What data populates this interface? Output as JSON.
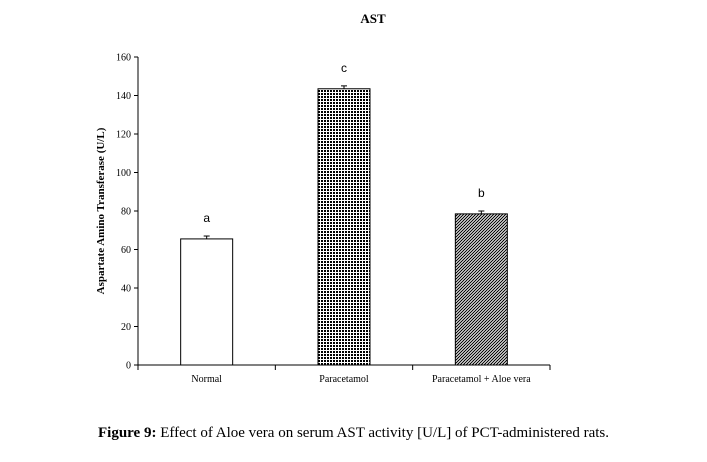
{
  "chart_data": {
    "type": "bar",
    "title": "AST",
    "ylabel": "Aspartate Amino Transferase (U/L)",
    "xlabel": "",
    "ylim": [
      0,
      160
    ],
    "yticks": [
      0,
      20,
      40,
      60,
      80,
      100,
      120,
      140,
      160
    ],
    "grid": false,
    "categories": [
      "Normal",
      "Paracetamol",
      "Paracetamol + Aloe vera"
    ],
    "values": [
      65.5,
      143.5,
      78.5
    ],
    "errors": [
      1.5,
      1.5,
      1.5
    ],
    "significance_labels": [
      "a",
      "c",
      "b"
    ],
    "bar_fills": [
      "white",
      "dense-dots",
      "diagonal-hatch"
    ],
    "colors": {
      "bar_edge": "#000000",
      "axis": "#000000"
    }
  },
  "caption": {
    "label": "Figure 9:",
    "text": " Effect of Aloe vera on serum AST activity [U/L] of PCT-administered rats."
  }
}
